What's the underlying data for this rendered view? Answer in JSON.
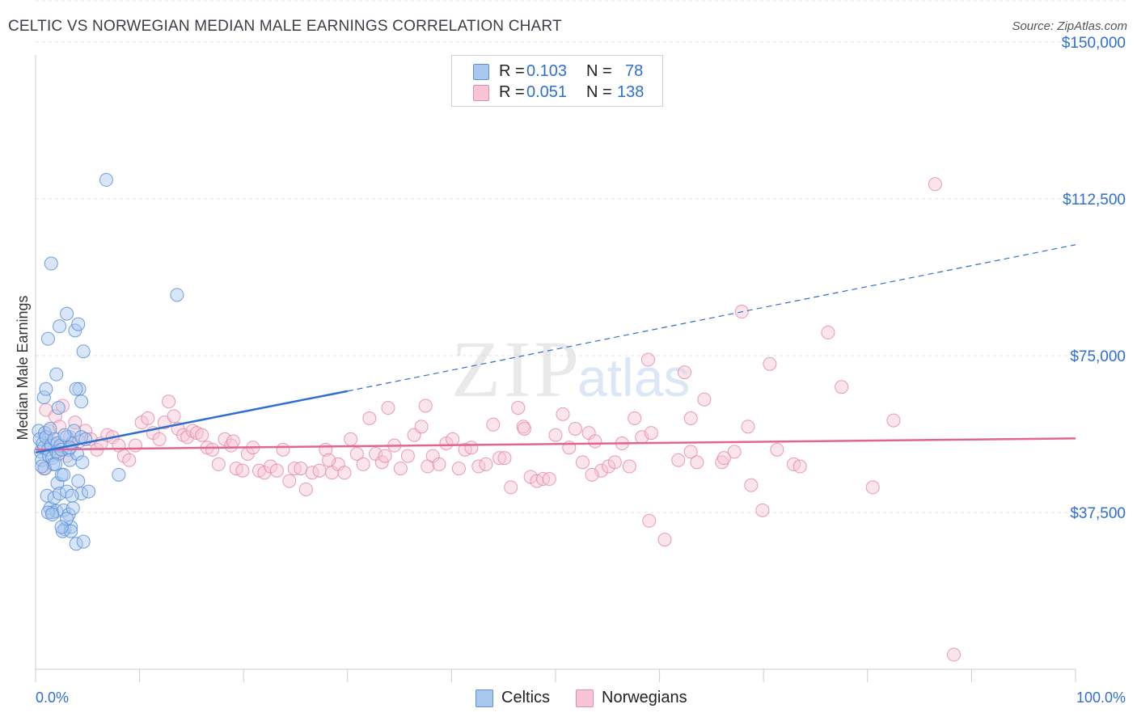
{
  "header": {
    "title": "CELTIC VS NORWEGIAN MEDIAN MALE EARNINGS CORRELATION CHART",
    "source": "Source: ZipAtlas.com"
  },
  "watermark": {
    "zip": "ZIP",
    "atlas": "atlas"
  },
  "legend_top": {
    "rows": [
      {
        "r_label": "R = ",
        "r_value": "0.103",
        "n_label": "N = ",
        "n_value": "78"
      },
      {
        "r_label": "R = ",
        "r_value": "0.051",
        "n_label": "N = ",
        "n_value": "138"
      }
    ]
  },
  "legend_bottom": {
    "celtics": "Celtics",
    "norwegians": "Norwegians"
  },
  "colors": {
    "celtics_fill": "#a9c8f0",
    "celtics_stroke": "#5b8fd6",
    "celtics_line": "#2f6fd0",
    "norwegians_fill": "#f7c5d5",
    "norwegians_stroke": "#e58aa8",
    "norwegians_line": "#e0668f",
    "axis_text": "#2f6fd0",
    "grid": "#e3e3e3"
  },
  "chart_data": {
    "type": "scatter",
    "title": "CELTIC VS NORWEGIAN MEDIAN MALE EARNINGS CORRELATION CHART",
    "xlabel": "",
    "ylabel": "Median Male Earnings",
    "xlim": [
      0,
      100
    ],
    "ylim": [
      0,
      160000
    ],
    "x_tick_labels": [
      "0.0%",
      "100.0%"
    ],
    "y_ticks": [
      37500,
      75000,
      112500,
      150000
    ],
    "y_tick_labels": [
      "$37,500",
      "$75,000",
      "$112,500",
      "$150,000"
    ],
    "grid": true,
    "legend_position": "top-center",
    "series": [
      {
        "name": "Celtics",
        "r": 0.103,
        "n": 78,
        "trend": {
          "x": [
            0,
            30
          ],
          "y": [
            51800,
            66500
          ],
          "dashed_extension_to": [
            100,
            101500
          ]
        },
        "points": [
          [
            0.3,
            57000
          ],
          [
            0.4,
            55000
          ],
          [
            0.5,
            52000
          ],
          [
            0.6,
            50000
          ],
          [
            0.7,
            54000
          ],
          [
            0.8,
            53000
          ],
          [
            0.9,
            56500
          ],
          [
            1.0,
            55500
          ],
          [
            1.2,
            52500
          ],
          [
            1.3,
            51000
          ],
          [
            1.4,
            57500
          ],
          [
            1.5,
            53500
          ],
          [
            1.6,
            50500
          ],
          [
            1.7,
            49000
          ],
          [
            1.8,
            55000
          ],
          [
            2.0,
            52000
          ],
          [
            2.1,
            54000
          ],
          [
            2.2,
            51500
          ],
          [
            2.4,
            53500
          ],
          [
            2.5,
            52500
          ],
          [
            0.8,
            65000
          ],
          [
            1.0,
            67000
          ],
          [
            1.2,
            79000
          ],
          [
            1.5,
            97000
          ],
          [
            2.0,
            70500
          ],
          [
            2.2,
            62500
          ],
          [
            2.3,
            82000
          ],
          [
            3.0,
            85000
          ],
          [
            3.8,
            81000
          ],
          [
            4.1,
            82500
          ],
          [
            4.6,
            76000
          ],
          [
            4.2,
            67000
          ],
          [
            4.4,
            64000
          ],
          [
            3.9,
            67000
          ],
          [
            0.9,
            48000
          ],
          [
            1.1,
            41500
          ],
          [
            1.4,
            38500
          ],
          [
            1.6,
            37500
          ],
          [
            1.8,
            41000
          ],
          [
            2.0,
            37800
          ],
          [
            2.1,
            44500
          ],
          [
            2.3,
            42000
          ],
          [
            2.5,
            46500
          ],
          [
            2.7,
            38000
          ],
          [
            2.8,
            33500
          ],
          [
            3.0,
            42500
          ],
          [
            3.2,
            37000
          ],
          [
            3.4,
            34000
          ],
          [
            3.6,
            38500
          ],
          [
            3.9,
            30000
          ],
          [
            2.6,
            33000
          ],
          [
            3.0,
            36000
          ],
          [
            3.4,
            33000
          ],
          [
            4.1,
            45000
          ],
          [
            4.4,
            42000
          ],
          [
            5.1,
            42500
          ],
          [
            4.6,
            30500
          ],
          [
            3.0,
            55500
          ],
          [
            3.2,
            52500
          ],
          [
            3.3,
            50000
          ],
          [
            3.5,
            54000
          ],
          [
            3.7,
            57000
          ],
          [
            4.4,
            55500
          ],
          [
            4.0,
            51500
          ],
          [
            4.5,
            49500
          ],
          [
            8.0,
            46500
          ],
          [
            6.8,
            117000
          ],
          [
            13.6,
            89500
          ],
          [
            2.8,
            56000
          ],
          [
            1.9,
            49000
          ],
          [
            1.2,
            37500
          ],
          [
            3.3,
            53000
          ],
          [
            2.7,
            46500
          ],
          [
            3.5,
            41500
          ],
          [
            0.6,
            48500
          ],
          [
            1.6,
            37000
          ],
          [
            2.5,
            34000
          ],
          [
            4.8,
            55000
          ]
        ]
      },
      {
        "name": "Norwegians",
        "r": 0.051,
        "n": 138,
        "trend": {
          "x": [
            0,
            100
          ],
          "y": [
            52500,
            55200
          ]
        },
        "points": [
          [
            0.8,
            48000
          ],
          [
            1.0,
            62000
          ],
          [
            1.3,
            57000
          ],
          [
            1.6,
            54000
          ],
          [
            1.9,
            60500
          ],
          [
            2.1,
            52000
          ],
          [
            2.3,
            58000
          ],
          [
            2.6,
            63000
          ],
          [
            3.0,
            51000
          ],
          [
            3.3,
            55500
          ],
          [
            3.8,
            59000
          ],
          [
            4.2,
            54500
          ],
          [
            4.8,
            57000
          ],
          [
            5.3,
            55000
          ],
          [
            5.9,
            52500
          ],
          [
            6.3,
            54000
          ],
          [
            6.9,
            56000
          ],
          [
            7.4,
            55500
          ],
          [
            8.0,
            53500
          ],
          [
            8.5,
            51000
          ],
          [
            9.0,
            50000
          ],
          [
            9.6,
            53500
          ],
          [
            10.2,
            59000
          ],
          [
            10.8,
            60000
          ],
          [
            11.3,
            56500
          ],
          [
            11.9,
            55000
          ],
          [
            12.4,
            59000
          ],
          [
            12.8,
            64000
          ],
          [
            13.3,
            60500
          ],
          [
            13.7,
            57500
          ],
          [
            14.2,
            56000
          ],
          [
            14.6,
            55500
          ],
          [
            15.1,
            57000
          ],
          [
            15.5,
            56500
          ],
          [
            16.0,
            56000
          ],
          [
            16.5,
            53000
          ],
          [
            17.0,
            52500
          ],
          [
            17.6,
            49000
          ],
          [
            18.2,
            55000
          ],
          [
            18.8,
            53500
          ],
          [
            19.3,
            48000
          ],
          [
            19.9,
            47500
          ],
          [
            20.4,
            51500
          ],
          [
            20.9,
            53000
          ],
          [
            21.5,
            47500
          ],
          [
            22.0,
            47000
          ],
          [
            22.6,
            48500
          ],
          [
            23.2,
            47500
          ],
          [
            23.8,
            52500
          ],
          [
            24.4,
            45000
          ],
          [
            24.9,
            48000
          ],
          [
            25.5,
            48000
          ],
          [
            26.0,
            43000
          ],
          [
            26.6,
            47000
          ],
          [
            27.3,
            47500
          ],
          [
            27.9,
            52500
          ],
          [
            28.5,
            47000
          ],
          [
            29.1,
            49000
          ],
          [
            29.7,
            47000
          ],
          [
            30.3,
            55000
          ],
          [
            30.9,
            51500
          ],
          [
            31.5,
            49000
          ],
          [
            32.1,
            60000
          ],
          [
            32.7,
            51500
          ],
          [
            33.3,
            49500
          ],
          [
            33.9,
            62500
          ],
          [
            34.5,
            53500
          ],
          [
            35.1,
            48000
          ],
          [
            35.8,
            51000
          ],
          [
            36.4,
            56000
          ],
          [
            37.1,
            58000
          ],
          [
            37.7,
            48500
          ],
          [
            38.2,
            51000
          ],
          [
            38.8,
            49000
          ],
          [
            39.5,
            54000
          ],
          [
            40.1,
            55000
          ],
          [
            40.7,
            48000
          ],
          [
            41.3,
            52500
          ],
          [
            41.9,
            53000
          ],
          [
            42.6,
            48500
          ],
          [
            43.3,
            49000
          ],
          [
            44.0,
            58500
          ],
          [
            44.6,
            50500
          ],
          [
            45.1,
            50500
          ],
          [
            45.7,
            43500
          ],
          [
            46.4,
            62500
          ],
          [
            46.9,
            58000
          ],
          [
            47.6,
            46000
          ],
          [
            48.2,
            45000
          ],
          [
            48.8,
            45500
          ],
          [
            49.4,
            45500
          ],
          [
            50.0,
            56000
          ],
          [
            50.7,
            61000
          ],
          [
            51.3,
            53000
          ],
          [
            51.9,
            57500
          ],
          [
            52.6,
            49500
          ],
          [
            53.2,
            56500
          ],
          [
            53.8,
            54500
          ],
          [
            54.4,
            47500
          ],
          [
            55.1,
            48500
          ],
          [
            55.7,
            49500
          ],
          [
            56.4,
            54000
          ],
          [
            57.1,
            48500
          ],
          [
            57.6,
            60000
          ],
          [
            58.3,
            55500
          ],
          [
            59.2,
            56500
          ],
          [
            59.0,
            35500
          ],
          [
            58.9,
            74000
          ],
          [
            60.5,
            31000
          ],
          [
            61.8,
            50000
          ],
          [
            62.4,
            71000
          ],
          [
            63.0,
            52000
          ],
          [
            63.6,
            49500
          ],
          [
            64.3,
            64500
          ],
          [
            66.0,
            49500
          ],
          [
            67.2,
            52000
          ],
          [
            67.9,
            85500
          ],
          [
            68.5,
            58000
          ],
          [
            68.8,
            44000
          ],
          [
            69.9,
            38000
          ],
          [
            70.6,
            73000
          ],
          [
            71.3,
            52500
          ],
          [
            72.9,
            49000
          ],
          [
            76.2,
            80500
          ],
          [
            77.5,
            67500
          ],
          [
            80.5,
            43500
          ],
          [
            82.5,
            59500
          ],
          [
            86.5,
            116000
          ],
          [
            88.3,
            3500
          ],
          [
            37.5,
            63000
          ],
          [
            47.0,
            57500
          ],
          [
            53.5,
            46500
          ],
          [
            63.0,
            60000
          ],
          [
            66.2,
            50500
          ],
          [
            73.5,
            48500
          ],
          [
            28.2,
            50000
          ],
          [
            33.6,
            51000
          ],
          [
            19.0,
            54500
          ]
        ]
      }
    ]
  }
}
